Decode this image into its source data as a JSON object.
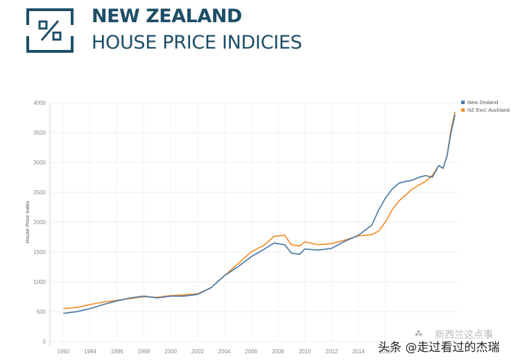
{
  "header": {
    "title": "NEW ZEALAND",
    "subtitle": "HOUSE PRICE INDICIES"
  },
  "watermark": {
    "label": "头条 @走过看过的杰瑞",
    "top_text": "新西兰这点事",
    "dots": "⁂"
  },
  "colors": {
    "title": "#1d4e67",
    "nz": "#4e79a7",
    "excl_auckland": "#f28e2b"
  },
  "chart_data": {
    "type": "line",
    "title": "",
    "xlabel": "",
    "ylabel": "House Price Index",
    "xlim": [
      1991.0,
      2021.4
    ],
    "ylim": [
      0,
      4000
    ],
    "yticks": [
      0,
      500,
      1000,
      1500,
      2000,
      2500,
      3000,
      3500,
      4000
    ],
    "xticks": [
      1992,
      1994,
      1996,
      1998,
      2000,
      2002,
      2004,
      2006,
      2008,
      2010,
      2012,
      2014,
      2016
    ],
    "grid": true,
    "legend_position": "top-right",
    "series": [
      {
        "name": "New Zealand",
        "color": "#4e79a7",
        "points": [
          [
            1992.0,
            470
          ],
          [
            1993.0,
            500
          ],
          [
            1994.0,
            550
          ],
          [
            1995.0,
            620
          ],
          [
            1996.0,
            680
          ],
          [
            1997.0,
            730
          ],
          [
            1998.0,
            760
          ],
          [
            1999.0,
            730
          ],
          [
            2000.0,
            760
          ],
          [
            2001.0,
            760
          ],
          [
            2002.0,
            790
          ],
          [
            2003.0,
            900
          ],
          [
            2004.0,
            1100
          ],
          [
            2005.0,
            1250
          ],
          [
            2006.0,
            1420
          ],
          [
            2007.0,
            1550
          ],
          [
            2007.7,
            1650
          ],
          [
            2008.5,
            1620
          ],
          [
            2009.0,
            1480
          ],
          [
            2009.6,
            1460
          ],
          [
            2010.0,
            1550
          ],
          [
            2011.0,
            1530
          ],
          [
            2012.0,
            1560
          ],
          [
            2013.0,
            1680
          ],
          [
            2014.0,
            1780
          ],
          [
            2015.0,
            1950
          ],
          [
            2015.5,
            2200
          ],
          [
            2016.0,
            2400
          ],
          [
            2016.5,
            2550
          ],
          [
            2017.0,
            2650
          ],
          [
            2017.5,
            2680
          ],
          [
            2018.0,
            2700
          ],
          [
            2018.5,
            2750
          ],
          [
            2019.0,
            2780
          ],
          [
            2019.5,
            2750
          ],
          [
            2020.0,
            2950
          ],
          [
            2020.3,
            2900
          ],
          [
            2020.6,
            3100
          ],
          [
            2020.9,
            3500
          ],
          [
            2021.2,
            3800
          ]
        ]
      },
      {
        "name": "NZ Excl. Auckland",
        "color": "#f28e2b",
        "points": [
          [
            1992.0,
            550
          ],
          [
            1993.0,
            570
          ],
          [
            1994.0,
            620
          ],
          [
            1995.0,
            660
          ],
          [
            1996.0,
            690
          ],
          [
            1997.0,
            720
          ],
          [
            1998.0,
            750
          ],
          [
            1999.0,
            740
          ],
          [
            2000.0,
            770
          ],
          [
            2001.0,
            780
          ],
          [
            2002.0,
            800
          ],
          [
            2003.0,
            900
          ],
          [
            2004.0,
            1100
          ],
          [
            2005.0,
            1300
          ],
          [
            2006.0,
            1500
          ],
          [
            2007.0,
            1620
          ],
          [
            2007.7,
            1760
          ],
          [
            2008.5,
            1780
          ],
          [
            2009.0,
            1620
          ],
          [
            2009.6,
            1600
          ],
          [
            2010.0,
            1670
          ],
          [
            2011.0,
            1620
          ],
          [
            2012.0,
            1640
          ],
          [
            2013.0,
            1700
          ],
          [
            2014.0,
            1770
          ],
          [
            2015.0,
            1790
          ],
          [
            2015.5,
            1850
          ],
          [
            2016.0,
            2000
          ],
          [
            2016.5,
            2200
          ],
          [
            2017.0,
            2350
          ],
          [
            2017.5,
            2450
          ],
          [
            2018.0,
            2550
          ],
          [
            2018.5,
            2620
          ],
          [
            2019.0,
            2680
          ],
          [
            2019.5,
            2780
          ],
          [
            2020.0,
            2950
          ],
          [
            2020.3,
            2900
          ],
          [
            2020.6,
            3100
          ],
          [
            2020.9,
            3550
          ],
          [
            2021.2,
            3850
          ]
        ]
      }
    ]
  }
}
